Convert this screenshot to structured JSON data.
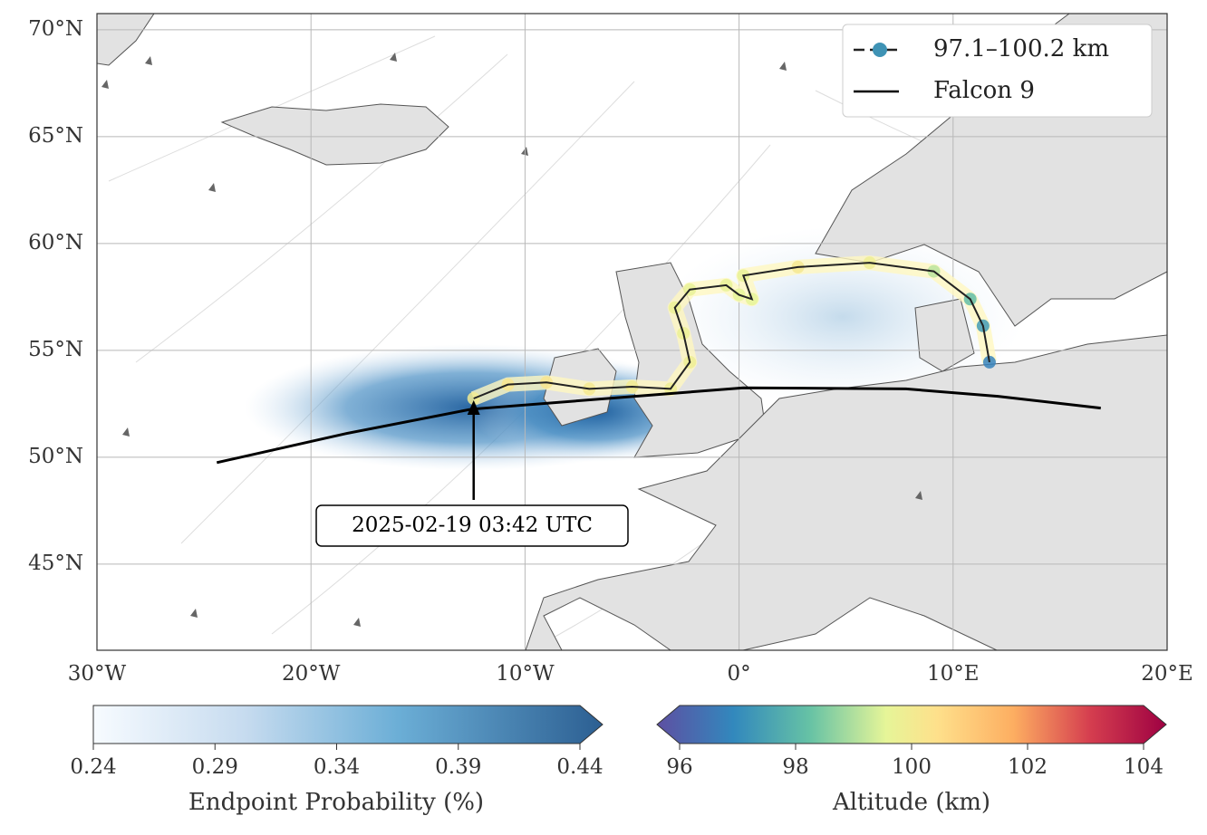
{
  "chart_data": {
    "type": "map",
    "xlim": [
      -30,
      20
    ],
    "ylim": [
      40.97,
      70.76
    ],
    "xticks": [
      {
        "value": -30,
        "label": "30°W"
      },
      {
        "value": -20,
        "label": "20°W"
      },
      {
        "value": -10,
        "label": "10°W"
      },
      {
        "value": 0,
        "label": "0°"
      },
      {
        "value": 10,
        "label": "10°E"
      },
      {
        "value": 20,
        "label": "20°E"
      }
    ],
    "yticks": [
      {
        "value": 45,
        "label": "45°N"
      },
      {
        "value": 50,
        "label": "50°N"
      },
      {
        "value": 55,
        "label": "55°N"
      },
      {
        "value": 60,
        "label": "60°N"
      },
      {
        "value": 65,
        "label": "65°N"
      },
      {
        "value": 70,
        "label": "70°N"
      }
    ],
    "grid": true,
    "legend": "upper right",
    "series": [
      {
        "name": "97.1–100.2 km",
        "color": "#3f93b5",
        "x": [
          -12.4,
          -10.8,
          -9.0,
          -7.0,
          -5.0,
          -3.2,
          -2.3,
          -2.6,
          -3.0,
          -2.3,
          -0.6,
          0.0,
          0.6,
          0.2,
          2.75,
          6.1,
          9.1,
          10.8,
          11.4,
          11.7
        ],
        "y": [
          52.75,
          53.4,
          53.5,
          53.2,
          53.3,
          53.2,
          54.45,
          55.8,
          57.0,
          57.85,
          58.05,
          57.6,
          57.4,
          58.5,
          58.9,
          59.1,
          58.7,
          57.4,
          56.15,
          54.45
        ],
        "altitude": [
          100.0,
          100.2,
          100.2,
          100.1,
          100.0,
          99.9,
          99.9,
          99.8,
          99.8,
          99.7,
          99.7,
          99.6,
          99.6,
          99.7,
          100.1,
          99.9,
          99.2,
          98.3,
          97.6,
          97.1
        ]
      },
      {
        "name": "Falcon 9",
        "color": "#000000",
        "x": [
          -24.4,
          -18.4,
          -12.5,
          0.2,
          7.8,
          12.1,
          16.9
        ],
        "y": [
          49.75,
          51.1,
          52.25,
          53.25,
          53.2,
          52.85,
          52.3
        ]
      }
    ],
    "annotation": "2025-02-19 03:42 UTC",
    "colorbars": [
      {
        "label": "Endpoint Probability (%)",
        "lim": [
          0.24,
          0.44
        ],
        "ticks": [
          0.24,
          0.29,
          0.34,
          0.39,
          0.44
        ]
      },
      {
        "label": "Altitude (km)",
        "lim": [
          96,
          104
        ],
        "ticks": [
          96,
          98,
          100,
          102,
          104
        ]
      }
    ]
  }
}
